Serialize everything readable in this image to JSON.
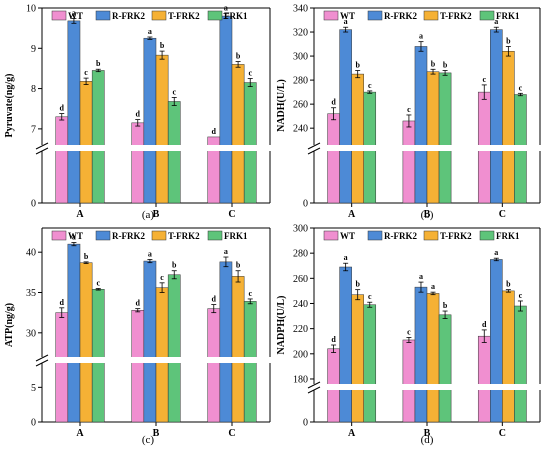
{
  "chart_data": [
    {
      "type": "bar",
      "panel_label": "(a)",
      "ylabel": "Pyruvate(ng/g)",
      "categories": [
        "A",
        "B",
        "C"
      ],
      "legend": [
        "WT",
        "R-FRK2",
        "T-FRK2",
        "FRK1"
      ],
      "legend_position": "top",
      "axis_break": true,
      "ylim_upper": [
        6.6,
        10.0
      ],
      "yticks_upper": [
        7,
        8,
        9,
        10
      ],
      "ylim_lower": [
        0,
        1
      ],
      "yticks_lower": [
        0
      ],
      "series": [
        {
          "name": "WT",
          "color": "#f08fd0",
          "values": [
            7.3,
            7.15,
            6.8
          ],
          "errors": [
            0.08,
            0.08,
            0.0
          ],
          "sig": [
            "d",
            "d",
            "d"
          ]
        },
        {
          "name": "R-FRK2",
          "color": "#4d8ad6",
          "values": [
            9.68,
            9.25,
            9.8
          ],
          "errors": [
            0.06,
            0.03,
            0.06
          ],
          "sig": [
            "a",
            "a",
            "a"
          ]
        },
        {
          "name": "T-FRK2",
          "color": "#f5b135",
          "values": [
            8.18,
            8.83,
            8.6
          ],
          "errors": [
            0.08,
            0.1,
            0.07
          ],
          "sig": [
            "c",
            "b",
            "b"
          ]
        },
        {
          "name": "FRK1",
          "color": "#5ec47a",
          "values": [
            8.45,
            7.68,
            8.15
          ],
          "errors": [
            0.03,
            0.1,
            0.1
          ],
          "sig": [
            "b",
            "c",
            "c"
          ]
        }
      ]
    },
    {
      "type": "bar",
      "panel_label": "(b)",
      "ylabel": "NADH(U/L)",
      "categories": [
        "A",
        "B",
        "C"
      ],
      "legend": [
        "WT",
        "R-FRK2",
        "T-FRK2",
        "FRK1"
      ],
      "legend_position": "top",
      "axis_break": true,
      "ylim_upper": [
        226,
        340
      ],
      "yticks_upper": [
        240,
        260,
        280,
        300,
        320,
        340
      ],
      "ylim_lower": [
        0,
        1
      ],
      "yticks_lower": [
        0
      ],
      "series": [
        {
          "name": "WT",
          "color": "#f08fd0",
          "values": [
            252,
            246,
            270
          ],
          "errors": [
            5,
            5,
            6
          ],
          "sig": [
            "d",
            "c",
            "c"
          ]
        },
        {
          "name": "R-FRK2",
          "color": "#4d8ad6",
          "values": [
            322,
            308,
            322
          ],
          "errors": [
            2,
            4,
            2
          ],
          "sig": [
            "a",
            "a",
            "a"
          ]
        },
        {
          "name": "T-FRK2",
          "color": "#f5b135",
          "values": [
            285,
            287,
            304
          ],
          "errors": [
            3,
            2,
            4
          ],
          "sig": [
            "b",
            "b",
            "b"
          ]
        },
        {
          "name": "FRK1",
          "color": "#5ec47a",
          "values": [
            270,
            286,
            268
          ],
          "errors": [
            1,
            2,
            1
          ],
          "sig": [
            "c",
            "b",
            "c"
          ]
        }
      ]
    },
    {
      "type": "bar",
      "panel_label": "(c)",
      "ylabel": "ATP(ng/g)",
      "categories": [
        "A",
        "B",
        "C"
      ],
      "legend": [
        "WT",
        "R-FRK2",
        "T-FRK2",
        "FRK1"
      ],
      "legend_position": "top",
      "axis_break": true,
      "ylim_upper": [
        27,
        43
      ],
      "yticks_upper": [
        30,
        35,
        40
      ],
      "ylim_lower": [
        0,
        7.5
      ],
      "yticks_lower": [
        0,
        5
      ],
      "series": [
        {
          "name": "WT",
          "color": "#f08fd0",
          "values": [
            32.5,
            32.8,
            33.0
          ],
          "errors": [
            0.6,
            0.2,
            0.5
          ],
          "sig": [
            "d",
            "d",
            "d"
          ]
        },
        {
          "name": "R-FRK2",
          "color": "#4d8ad6",
          "values": [
            41.0,
            38.9,
            38.8
          ],
          "errors": [
            0.2,
            0.2,
            0.6
          ],
          "sig": [
            "a",
            "a",
            "a"
          ]
        },
        {
          "name": "T-FRK2",
          "color": "#f5b135",
          "values": [
            38.7,
            35.6,
            37.0
          ],
          "errors": [
            0.1,
            0.6,
            0.7
          ],
          "sig": [
            "b",
            "c",
            "b"
          ]
        },
        {
          "name": "FRK1",
          "color": "#5ec47a",
          "values": [
            35.4,
            37.2,
            33.9
          ],
          "errors": [
            0.1,
            0.5,
            0.3
          ],
          "sig": [
            "c",
            "b",
            "c"
          ]
        }
      ]
    },
    {
      "type": "bar",
      "panel_label": "(d)",
      "ylabel": "NADPH(U/L)",
      "categories": [
        "A",
        "B",
        "C"
      ],
      "legend": [
        "WT",
        "R-FRK2",
        "T-FRK2",
        "FRK1"
      ],
      "legend_position": "top",
      "axis_break": true,
      "ylim_upper": [
        176,
        300
      ],
      "yticks_upper": [
        180,
        200,
        220,
        240,
        260,
        280,
        300
      ],
      "ylim_lower": [
        0,
        1
      ],
      "yticks_lower": [
        0
      ],
      "series": [
        {
          "name": "WT",
          "color": "#f08fd0",
          "values": [
            204,
            211,
            214
          ],
          "errors": [
            3,
            2,
            5
          ],
          "sig": [
            "d",
            "c",
            "d"
          ]
        },
        {
          "name": "R-FRK2",
          "color": "#4d8ad6",
          "values": [
            269,
            253,
            275
          ],
          "errors": [
            3,
            4,
            1
          ],
          "sig": [
            "a",
            "a",
            "a"
          ]
        },
        {
          "name": "T-FRK2",
          "color": "#f5b135",
          "values": [
            247,
            248,
            250
          ],
          "errors": [
            4,
            1,
            1
          ],
          "sig": [
            "b",
            "a",
            "b"
          ]
        },
        {
          "name": "FRK1",
          "color": "#5ec47a",
          "values": [
            239,
            231,
            238
          ],
          "errors": [
            2,
            3,
            4
          ],
          "sig": [
            "c",
            "b",
            "c"
          ]
        }
      ]
    }
  ]
}
